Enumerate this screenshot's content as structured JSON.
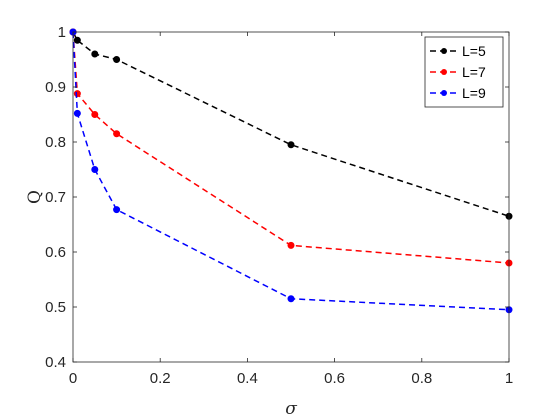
{
  "chart_data": {
    "type": "line",
    "title": "",
    "xlabel": "σ",
    "ylabel": "Q",
    "xlim": [
      0,
      1
    ],
    "ylim": [
      0.4,
      1
    ],
    "xticks": [
      "0",
      "0.2",
      "0.4",
      "0.6",
      "0.8",
      "1"
    ],
    "yticks": [
      "0.4",
      "0.5",
      "0.6",
      "0.7",
      "0.8",
      "0.9",
      "1"
    ],
    "grid": false,
    "legend_position": "top-right",
    "x": [
      0,
      0.01,
      0.05,
      0.1,
      0.5,
      1
    ],
    "series": [
      {
        "name": "L=5",
        "color": "#000000",
        "values": [
          1.0,
          0.985,
          0.96,
          0.95,
          0.795,
          0.665
        ]
      },
      {
        "name": "L=7",
        "color": "#ff0000",
        "values": [
          1.0,
          0.888,
          0.85,
          0.815,
          0.612,
          0.58
        ]
      },
      {
        "name": "L=9",
        "color": "#0000ff",
        "values": [
          1.0,
          0.852,
          0.75,
          0.677,
          0.515,
          0.495
        ]
      }
    ]
  }
}
